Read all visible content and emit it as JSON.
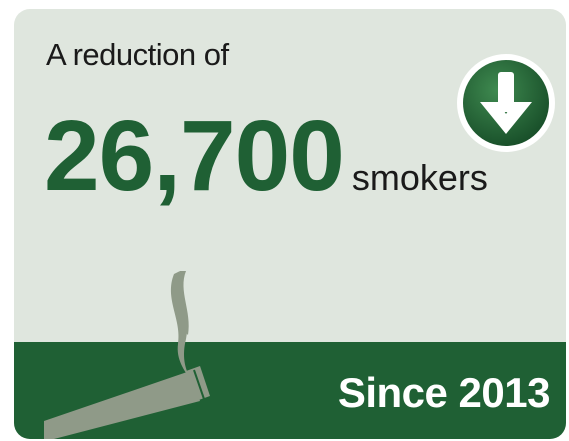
{
  "card": {
    "intro_text": "A reduction of",
    "figure": "26,700",
    "unit": "smokers",
    "footer_text": "Since 2013",
    "trend_icon": "arrow-down-circle-icon",
    "illustration_icon": "smoking-cigarette-icon"
  },
  "colors": {
    "card_background": "#dfe6de",
    "brand_green": "#1f6034",
    "cigarette": "#8f9a88",
    "badge_outer": "#ffffff"
  }
}
